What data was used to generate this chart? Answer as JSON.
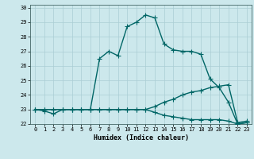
{
  "xlabel": "Humidex (Indice chaleur)",
  "ylabel": "",
  "xlim": [
    -0.5,
    23.5
  ],
  "ylim": [
    22,
    30.2
  ],
  "yticks": [
    22,
    23,
    24,
    25,
    26,
    27,
    28,
    29,
    30
  ],
  "xticks": [
    0,
    1,
    2,
    3,
    4,
    5,
    6,
    7,
    8,
    9,
    10,
    11,
    12,
    13,
    14,
    15,
    16,
    17,
    18,
    19,
    20,
    21,
    22,
    23
  ],
  "background_color": "#cce8ec",
  "grid_color": "#aacdd4",
  "line_color": "#006666",
  "line_width": 1.0,
  "marker": "+",
  "marker_size": 4,
  "series": [
    [
      23,
      22.9,
      22.7,
      23,
      23,
      23,
      23,
      26.5,
      27.0,
      26.7,
      28.7,
      29.0,
      29.5,
      29.3,
      27.5,
      27.1,
      27.0,
      27.0,
      26.8,
      25.1,
      24.5,
      23.5,
      22.0,
      22.1
    ],
    [
      23,
      23,
      23,
      23,
      23,
      23,
      23,
      23,
      23,
      23,
      23,
      23,
      23,
      23.2,
      23.5,
      23.7,
      24.0,
      24.2,
      24.3,
      24.5,
      24.6,
      24.7,
      22.1,
      22.2
    ],
    [
      23,
      23,
      23,
      23,
      23,
      23,
      23,
      23,
      23,
      23,
      23,
      23,
      23,
      22.8,
      22.6,
      22.5,
      22.4,
      22.3,
      22.3,
      22.3,
      22.3,
      22.2,
      22.0,
      22.1
    ]
  ]
}
